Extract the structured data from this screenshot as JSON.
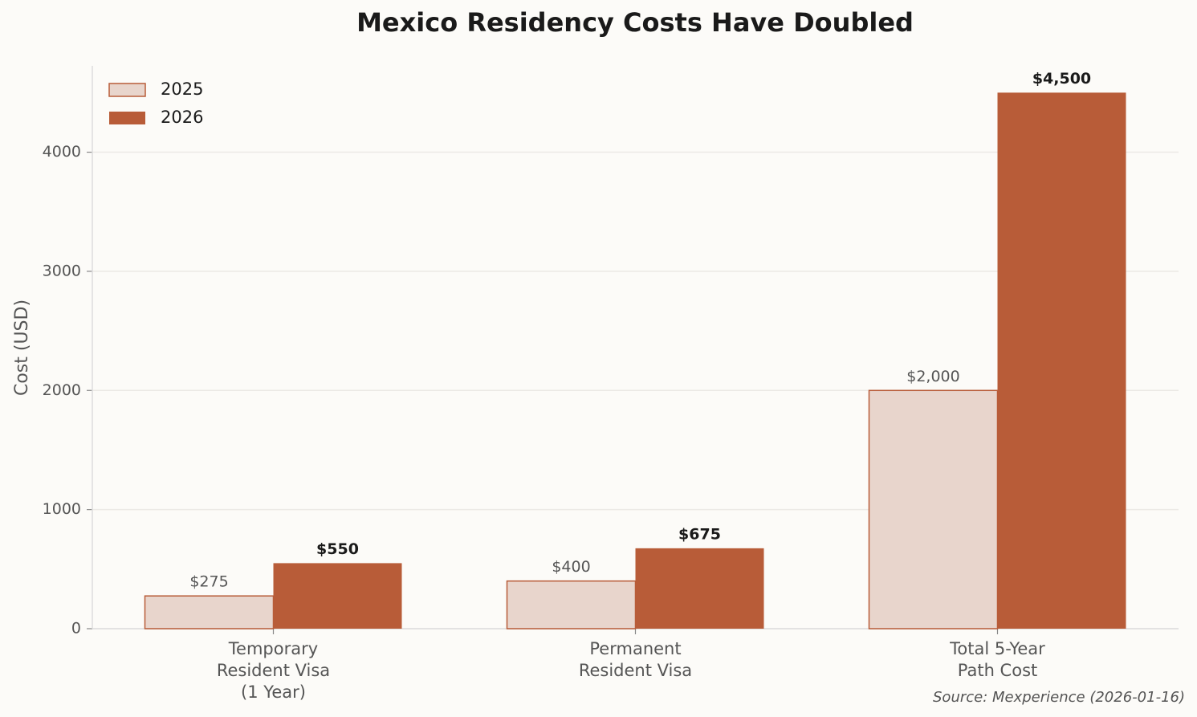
{
  "chart_data": {
    "type": "bar",
    "title": "Mexico Residency Costs Have Doubled",
    "categories": [
      "Temporary\nResident Visa\n(1 Year)",
      "Permanent\nResident Visa",
      "Total 5-Year\nPath Cost"
    ],
    "series": [
      {
        "name": "2025",
        "color": "#e8d5cc",
        "edgecolor": "#b85c38",
        "values": [
          275,
          400,
          2000
        ],
        "value_labels": [
          "$275",
          "$400",
          "$2,000"
        ]
      },
      {
        "name": "2026",
        "color": "#b85c38",
        "values": [
          550,
          675,
          4500
        ],
        "value_labels": [
          "$550",
          "$675",
          "$4,500"
        ]
      }
    ],
    "ylabel": "Cost (USD)",
    "ylim": [
      0,
      4725
    ],
    "yticks": [
      0,
      1000,
      2000,
      3000,
      4000
    ],
    "grid": true,
    "legend": "upper left",
    "source": "Source: Mexperience (2026-01-16)"
  }
}
